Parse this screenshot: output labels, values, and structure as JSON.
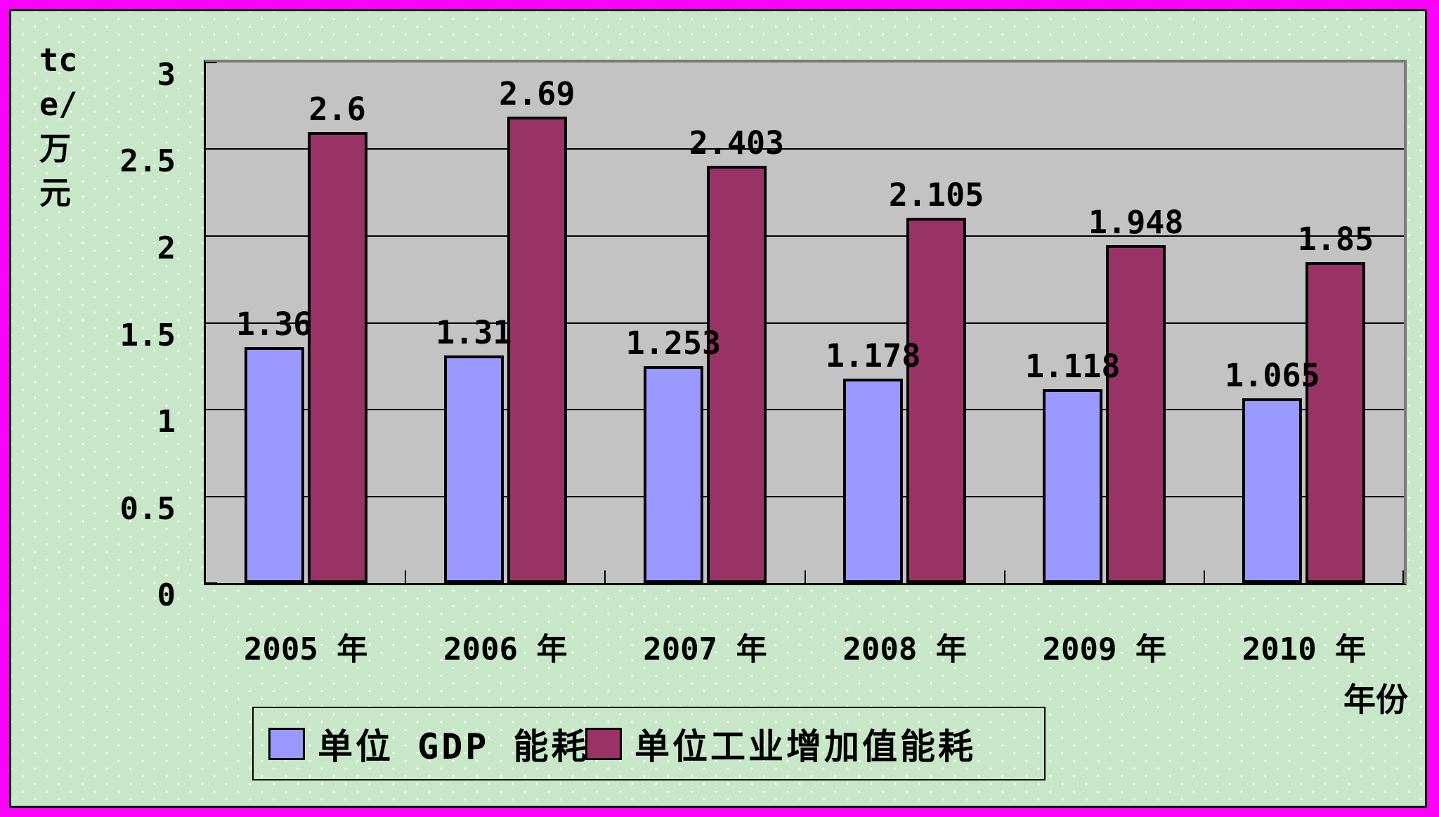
{
  "chart_data": {
    "type": "bar",
    "title": "",
    "ylabel": "tce/万元",
    "ylabel_lines": [
      "tc",
      "e/",
      "万",
      "元"
    ],
    "xlabel": "年份",
    "ylim": [
      0,
      3
    ],
    "ytick_labels": [
      "0",
      "0.5",
      "1",
      "1.5",
      "2",
      "2.5",
      "3"
    ],
    "grid": true,
    "legend_position": "bottom",
    "categories": [
      "2005 年",
      "2006 年",
      "2007 年",
      "2008 年",
      "2009 年",
      "2010 年"
    ],
    "series": [
      {
        "name": "单位 GDP 能耗",
        "color": "#9999ff",
        "values": [
          1.36,
          1.31,
          1.253,
          1.178,
          1.118,
          1.065
        ],
        "labels": [
          "1.36",
          "1.31",
          "1.253",
          "1.178",
          "1.118",
          "1.065"
        ]
      },
      {
        "name": "单位工业增加值能耗",
        "color": "#993366",
        "values": [
          2.6,
          2.69,
          2.403,
          2.105,
          1.948,
          1.85
        ],
        "labels": [
          "2.6",
          "2.69",
          "2.403",
          "2.105",
          "1.948",
          "1.85"
        ]
      }
    ],
    "colors": {
      "frame": "#ff00ff",
      "chart_background": "#c8e6c8",
      "plot_background": "#c3c3c3",
      "plot_border": "#7a7a7a",
      "axis_line": "#000000",
      "text": "#000000"
    }
  }
}
